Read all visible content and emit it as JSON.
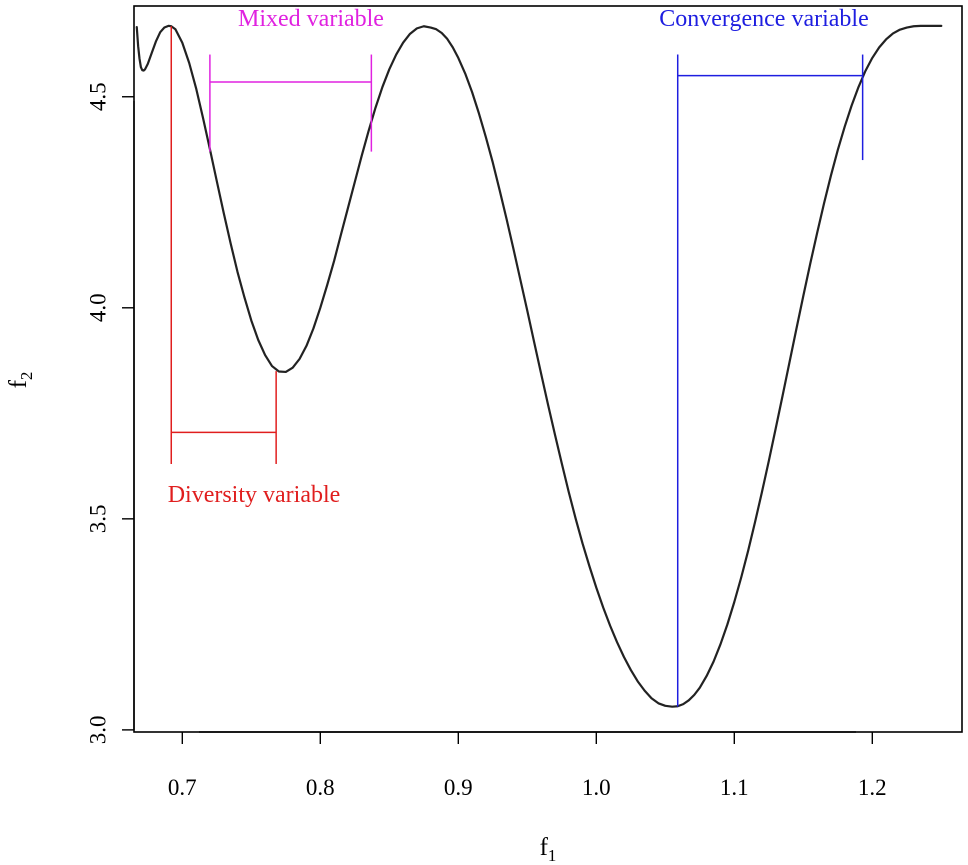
{
  "chart_data": {
    "type": "line",
    "title": "",
    "xlabel": "f",
    "xlabel_subscript": "1",
    "ylabel": "f",
    "ylabel_subscript": "2",
    "xlim": [
      0.665,
      1.265
    ],
    "ylim": [
      2.995,
      4.715
    ],
    "x_ticks": [
      0.7,
      0.8,
      0.9,
      1.0,
      1.1,
      1.2
    ],
    "x_tick_labels": [
      "0.7",
      "0.8",
      "0.9",
      "1.0",
      "1.1",
      "1.2"
    ],
    "y_ticks": [
      3.0,
      3.5,
      4.0,
      4.5
    ],
    "y_tick_labels": [
      "3.0",
      "3.5",
      "4.0",
      "4.5"
    ],
    "grid": false,
    "legend": "none",
    "series": [
      {
        "x": [
          0.667,
          0.668,
          0.669,
          0.67,
          0.671,
          0.672,
          0.673,
          0.675,
          0.678,
          0.681,
          0.684,
          0.687,
          0.69,
          0.692,
          0.695,
          0.7,
          0.705,
          0.71,
          0.715,
          0.72,
          0.725,
          0.73,
          0.735,
          0.74,
          0.745,
          0.75,
          0.755,
          0.76,
          0.765,
          0.77,
          0.775,
          0.78,
          0.785,
          0.79,
          0.795,
          0.8,
          0.805,
          0.81,
          0.815,
          0.82,
          0.825,
          0.83,
          0.835,
          0.84,
          0.845,
          0.85,
          0.855,
          0.86,
          0.865,
          0.87,
          0.875,
          0.88,
          0.884,
          0.888,
          0.892,
          0.896,
          0.9,
          0.905,
          0.91,
          0.915,
          0.92,
          0.925,
          0.93,
          0.935,
          0.94,
          0.945,
          0.95,
          0.955,
          0.96,
          0.965,
          0.97,
          0.975,
          0.98,
          0.985,
          0.99,
          0.995,
          1.0,
          1.005,
          1.01,
          1.015,
          1.02,
          1.025,
          1.03,
          1.035,
          1.04,
          1.045,
          1.05,
          1.055,
          1.059,
          1.063,
          1.067,
          1.071,
          1.075,
          1.08,
          1.085,
          1.09,
          1.095,
          1.1,
          1.105,
          1.11,
          1.115,
          1.12,
          1.125,
          1.13,
          1.135,
          1.14,
          1.145,
          1.15,
          1.155,
          1.16,
          1.165,
          1.17,
          1.175,
          1.18,
          1.185,
          1.19,
          1.195,
          1.2,
          1.205,
          1.21,
          1.215,
          1.22,
          1.225,
          1.23,
          1.235,
          1.24,
          1.245,
          1.25
        ],
        "y": [
          4.665,
          4.62,
          4.59,
          4.57,
          4.563,
          4.562,
          4.565,
          4.578,
          4.605,
          4.632,
          4.653,
          4.664,
          4.668,
          4.667,
          4.66,
          4.628,
          4.58,
          4.52,
          4.45,
          4.376,
          4.3,
          4.225,
          4.153,
          4.085,
          4.025,
          3.97,
          3.924,
          3.888,
          3.862,
          3.849,
          3.848,
          3.858,
          3.879,
          3.91,
          3.951,
          4.0,
          4.054,
          4.111,
          4.174,
          4.236,
          4.298,
          4.36,
          4.419,
          4.474,
          4.523,
          4.565,
          4.6,
          4.628,
          4.649,
          4.662,
          4.667,
          4.664,
          4.66,
          4.651,
          4.637,
          4.617,
          4.592,
          4.555,
          4.511,
          4.46,
          4.404,
          4.344,
          4.278,
          4.21,
          4.139,
          4.066,
          3.993,
          3.918,
          3.844,
          3.771,
          3.7,
          3.631,
          3.564,
          3.501,
          3.442,
          3.388,
          3.337,
          3.29,
          3.247,
          3.208,
          3.173,
          3.142,
          3.115,
          3.093,
          3.075,
          3.063,
          3.057,
          3.055,
          3.056,
          3.061,
          3.07,
          3.083,
          3.1,
          3.128,
          3.162,
          3.203,
          3.25,
          3.303,
          3.361,
          3.424,
          3.492,
          3.563,
          3.637,
          3.714,
          3.792,
          3.871,
          3.95,
          4.028,
          4.104,
          4.177,
          4.247,
          4.313,
          4.374,
          4.429,
          4.479,
          4.523,
          4.561,
          4.592,
          4.617,
          4.636,
          4.65,
          4.659,
          4.664,
          4.667,
          4.668,
          4.668,
          4.668,
          4.668
        ]
      }
    ],
    "annotations": [
      {
        "label": "Mixed variable",
        "color": "#e022e0",
        "vertical_lines": [
          {
            "x": 0.72,
            "y_top": 4.6,
            "y_bottom": 4.37
          },
          {
            "x": 0.837,
            "y_top": 4.6,
            "y_bottom": 4.37
          }
        ],
        "bracket": {
          "x_start": 0.72,
          "x_end": 0.837,
          "y": 4.535
        }
      },
      {
        "label": "Diversity variable",
        "color": "#e01e1e",
        "vertical_lines": [
          {
            "x": 0.692,
            "y_top": 4.667,
            "y_bottom": 3.63
          },
          {
            "x": 0.768,
            "y_top": 3.85,
            "y_bottom": 3.63
          }
        ],
        "bracket": {
          "x_start": 0.692,
          "x_end": 0.768,
          "y": 3.705
        }
      },
      {
        "label": "Convergence variable",
        "color": "#1e1ee0",
        "vertical_lines": [
          {
            "x": 1.059,
            "y_top": 4.6,
            "y_bottom": 3.055
          },
          {
            "x": 1.193,
            "y_top": 4.6,
            "y_bottom": 4.35
          }
        ],
        "bracket": {
          "x_start": 1.059,
          "x_end": 1.193,
          "y": 4.55
        }
      }
    ]
  }
}
